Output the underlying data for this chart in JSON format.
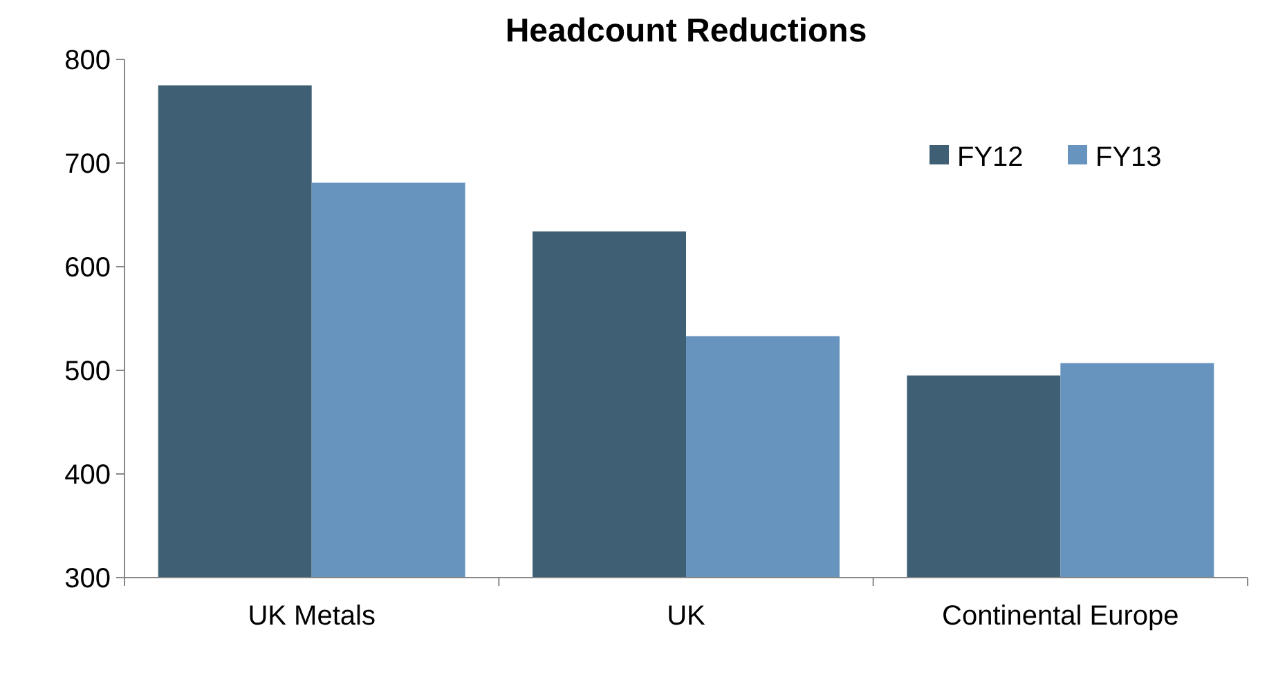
{
  "chart_data": {
    "type": "bar",
    "title": "Headcount Reductions",
    "categories": [
      "UK Metals",
      "UK",
      "Continental Europe"
    ],
    "series": [
      {
        "name": "FY12",
        "color": "#3f5f74",
        "values": [
          775,
          634,
          495
        ]
      },
      {
        "name": "FY13",
        "color": "#6694be",
        "values": [
          681,
          533,
          507
        ]
      }
    ],
    "ylim": [
      300,
      800
    ],
    "yticks": [
      300,
      400,
      500,
      600,
      700,
      800
    ],
    "legend": "top right"
  }
}
